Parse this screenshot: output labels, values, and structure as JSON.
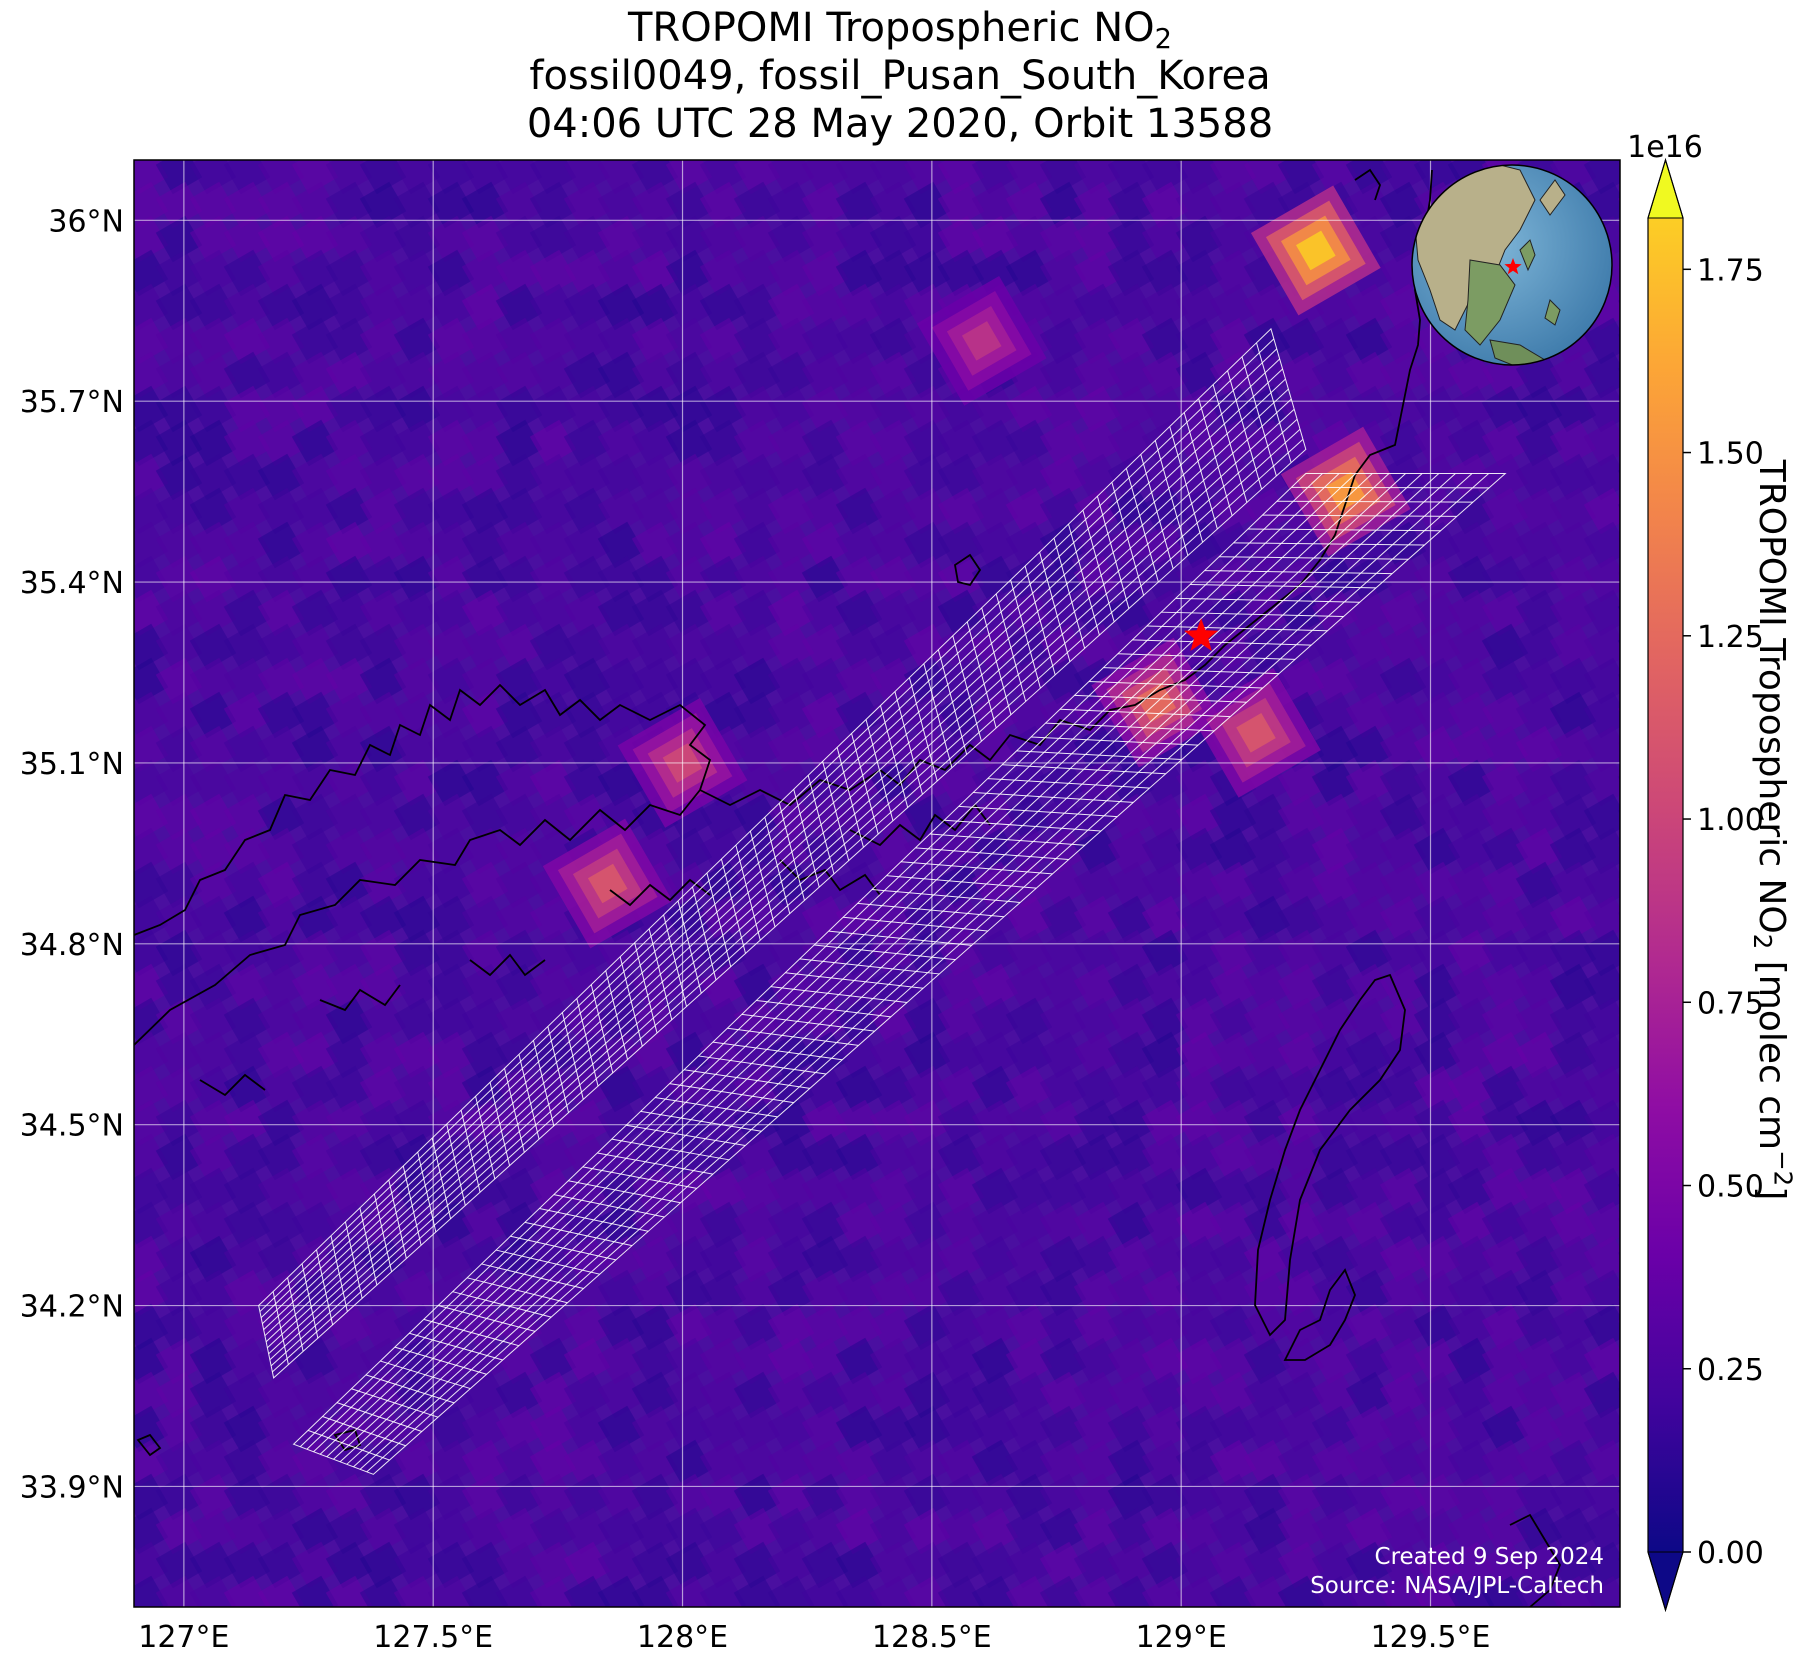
{
  "title": {
    "line1_prefix": "TROPOMI Tropospheric NO",
    "line1_sub": "2",
    "line2": "fossil0049, fossil_Pusan_South_Korea",
    "line3": "04:06 UTC 28 May 2020, Orbit 13588"
  },
  "map": {
    "lon_range": [
      126.9,
      129.88
    ],
    "lat_range": [
      33.7,
      36.1
    ],
    "lon_ticks": [
      {
        "value": 127.0,
        "label": "127°E"
      },
      {
        "value": 127.5,
        "label": "127.5°E"
      },
      {
        "value": 128.0,
        "label": "128°E"
      },
      {
        "value": 128.5,
        "label": "128.5°E"
      },
      {
        "value": 129.0,
        "label": "129°E"
      },
      {
        "value": 129.5,
        "label": "129.5°E"
      }
    ],
    "lat_ticks": [
      {
        "value": 36.0,
        "label": "36°N"
      },
      {
        "value": 35.7,
        "label": "35.7°N"
      },
      {
        "value": 35.4,
        "label": "35.4°N"
      },
      {
        "value": 35.1,
        "label": "35.1°N"
      },
      {
        "value": 34.8,
        "label": "34.8°N"
      },
      {
        "value": 34.5,
        "label": "34.5°N"
      },
      {
        "value": 34.2,
        "label": "34.2°N"
      },
      {
        "value": 33.9,
        "label": "33.9°N"
      }
    ],
    "gridlines": true,
    "background_color": "#4a0fa0",
    "target": {
      "lon": 129.04,
      "lat": 35.31,
      "marker": "star",
      "color": "#ff0000"
    },
    "hotspots": [
      {
        "lon": 129.33,
        "lat": 35.55,
        "value": 1.6
      },
      {
        "lon": 129.27,
        "lat": 35.95,
        "value": 1.85
      },
      {
        "lon": 128.95,
        "lat": 35.2,
        "value": 1.3
      },
      {
        "lon": 129.15,
        "lat": 35.15,
        "value": 1.15
      },
      {
        "lon": 127.85,
        "lat": 34.9,
        "value": 1.15
      },
      {
        "lon": 128.0,
        "lat": 35.1,
        "value": 1.05
      },
      {
        "lon": 128.6,
        "lat": 35.8,
        "value": 0.9
      }
    ],
    "overlay_swaths": [
      {
        "name": "swath-north",
        "corners": [
          [
            127.15,
            34.2
          ],
          [
            129.18,
            35.82
          ],
          [
            129.25,
            35.62
          ],
          [
            127.18,
            34.08
          ]
        ]
      },
      {
        "name": "swath-south",
        "corners": [
          [
            127.22,
            33.97
          ],
          [
            129.25,
            35.58
          ],
          [
            129.65,
            35.58
          ],
          [
            127.38,
            33.92
          ]
        ]
      }
    ],
    "credit_line1": "Created 9 Sep 2024",
    "credit_line2": "Source: NASA/JPL-Caltech"
  },
  "colorbar": {
    "colormap": "plasma",
    "range": [
      0.0,
      1.82
    ],
    "multiplier": "1e16",
    "ticks": [
      {
        "value": 0.0,
        "label": "0.00"
      },
      {
        "value": 0.25,
        "label": "0.25"
      },
      {
        "value": 0.5,
        "label": "0.50"
      },
      {
        "value": 0.75,
        "label": "0.75"
      },
      {
        "value": 1.0,
        "label": "1.00"
      },
      {
        "value": 1.25,
        "label": "1.25"
      },
      {
        "value": 1.5,
        "label": "1.50"
      },
      {
        "value": 1.75,
        "label": "1.75"
      }
    ],
    "label_prefix": "TROPOMI Tropospheric NO",
    "label_sub": "2",
    "label_mid": " [molec cm",
    "label_sup": "−2",
    "label_end": "]"
  },
  "inset_globe": {
    "description_icon": "globe-icon",
    "marker_color": "#ff0000"
  }
}
